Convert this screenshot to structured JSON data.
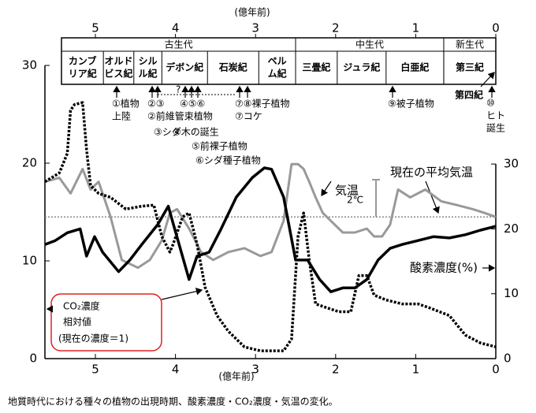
{
  "header": {
    "eras": [
      {
        "label": "古生代",
        "start": 5.42,
        "end": 2.5
      },
      {
        "label": "中生代",
        "start": 2.5,
        "end": 0.65
      },
      {
        "label": "新生代",
        "start": 0.65,
        "end": 0
      }
    ],
    "periods": [
      {
        "label": [
          "カンブ",
          "リア紀"
        ],
        "start": 5.42,
        "end": 4.9
      },
      {
        "label": [
          "オルド",
          "ビス紀"
        ],
        "start": 4.9,
        "end": 4.52
      },
      {
        "label": [
          "シル",
          "ル紀"
        ],
        "start": 4.52,
        "end": 4.17
      },
      {
        "label": [
          "デボン紀"
        ],
        "start": 4.17,
        "end": 3.6
      },
      {
        "label": [
          "石炭紀"
        ],
        "start": 3.6,
        "end": 2.96
      },
      {
        "label": [
          "ペル",
          "ム紀"
        ],
        "start": 2.96,
        "end": 2.5
      },
      {
        "label": [
          "三畳紀"
        ],
        "start": 2.5,
        "end": 1.98
      },
      {
        "label": [
          "ジュラ紀"
        ],
        "start": 1.98,
        "end": 1.37
      },
      {
        "label": [
          "白亜紀"
        ],
        "start": 1.37,
        "end": 0.65
      },
      {
        "label": [
          "第三紀"
        ],
        "start": 0.65,
        "end": 0
      }
    ]
  },
  "annotations": [
    "①植物",
    "上陸",
    "②③",
    "②前維管束植物",
    "③シダ",
    "④木の誕生",
    "⑤前裸子植物",
    "⑥シダ種子植物",
    "?",
    "④⑤⑥",
    "⑦⑧裸子植物",
    "⑦コケ",
    "⑨被子植物",
    "第四紀",
    "⑩",
    "ヒト",
    "誕生"
  ],
  "chart_data": {
    "type": "line",
    "xlabel": "(億年前)",
    "xlim": [
      5.63,
      0
    ],
    "xticks": [
      5,
      4,
      3,
      2,
      1,
      0
    ],
    "ylim": [
      0,
      30
    ],
    "yticks": [
      0,
      10,
      20,
      30
    ],
    "y2lim": [
      0,
      45.2
    ],
    "y2ticks": [
      0,
      10,
      20,
      30
    ],
    "series": [
      {
        "name": "気温",
        "color": "#999999",
        "style": "solid",
        "width": 3,
        "x": [
          5.63,
          5.45,
          5.31,
          5.16,
          5.06,
          4.96,
          4.81,
          4.67,
          4.47,
          4.32,
          4.17,
          4.07,
          3.98,
          3.83,
          3.68,
          3.53,
          3.34,
          3.14,
          2.94,
          2.8,
          2.65,
          2.55,
          2.47,
          2.4,
          2.33,
          2.25,
          2.16,
          2.06,
          1.91,
          1.76,
          1.61,
          1.52,
          1.42,
          1.32,
          1.22,
          1.07,
          0.88,
          0.68,
          0.48,
          0.29,
          0.14,
          0
        ],
        "values": [
          18.1,
          18.5,
          16.9,
          19.4,
          17.3,
          18.1,
          14.5,
          10.1,
          9.3,
          10.1,
          12.1,
          14.9,
          15.3,
          13.3,
          10.9,
          10.1,
          10.9,
          11.3,
          10.5,
          10.9,
          14.1,
          19.9,
          19.9,
          19.4,
          18.1,
          16.5,
          14.9,
          14.1,
          12.9,
          12.9,
          13.3,
          12.5,
          12.5,
          13.7,
          17.3,
          16.5,
          17.3,
          16.1,
          15.7,
          15.3,
          14.9,
          14.5
        ]
      },
      {
        "name": "酸素濃度(%)",
        "color": "#000000",
        "style": "solid",
        "width": 3.5,
        "axis": "y2",
        "x": [
          5.63,
          5.5,
          5.35,
          5.19,
          5.11,
          5.01,
          4.91,
          4.71,
          4.57,
          4.42,
          4.22,
          4.09,
          4.01,
          3.83,
          3.73,
          3.58,
          3.43,
          3.24,
          3.04,
          2.89,
          2.8,
          2.65,
          2.5,
          2.35,
          2.2,
          2.06,
          1.91,
          1.76,
          1.61,
          1.47,
          1.32,
          1.17,
          0.97,
          0.78,
          0.58,
          0.38,
          0.19,
          0
        ],
        "values": [
          17.6,
          18.2,
          19.4,
          20,
          15.8,
          18.8,
          16.4,
          13.4,
          15.2,
          17.6,
          20.7,
          23.5,
          20,
          12.2,
          15.8,
          16.4,
          20,
          24.9,
          27.9,
          29.4,
          29.2,
          24.9,
          15.2,
          15.2,
          12.2,
          10.3,
          10.9,
          10.9,
          12.2,
          15.2,
          17,
          17.6,
          18.2,
          18.8,
          18.6,
          19.1,
          19.8,
          20.4
        ]
      },
      {
        "name": "CO₂濃度",
        "note": [
          "相対値",
          "(現在の濃度＝1)"
        ],
        "color": "#000000",
        "style": "dotted",
        "width": 3.5,
        "x": [
          5.63,
          5.45,
          5.35,
          5.31,
          5.26,
          5.16,
          5.11,
          5.06,
          4.96,
          4.81,
          4.62,
          4.42,
          4.27,
          4.17,
          4.07,
          4.03,
          3.91,
          3.83,
          3.73,
          3.63,
          3.48,
          3.34,
          3.14,
          2.94,
          2.65,
          2.55,
          2.47,
          2.4,
          2.33,
          2.25,
          2.11,
          1.96,
          1.81,
          1.71,
          1.61,
          1.52,
          1.37,
          1.17,
          0.97,
          0.83,
          0.58,
          0.38,
          0.19,
          0
        ],
        "values": [
          18.1,
          19,
          21,
          25.4,
          26,
          26.2,
          21.4,
          17.7,
          16.9,
          16.5,
          15.3,
          15.6,
          15.7,
          12.5,
          10.9,
          11.7,
          14.5,
          14.9,
          11.7,
          7.3,
          4.4,
          2.8,
          1.2,
          0.8,
          0.8,
          2,
          12.5,
          14.9,
          10.1,
          5.6,
          5.2,
          4.8,
          4.8,
          8.5,
          8.5,
          6.5,
          6,
          5.6,
          5.6,
          5.2,
          4.4,
          2.4,
          1.6,
          1.2
        ]
      }
    ],
    "reference": {
      "label": "現在の平均気温",
      "value": 14.5,
      "color": "#888888"
    },
    "range_note": "2℃"
  },
  "caption": "地質時代における種々の植物の出現時期、酸素濃度・CO₂濃度・気温の変化。"
}
